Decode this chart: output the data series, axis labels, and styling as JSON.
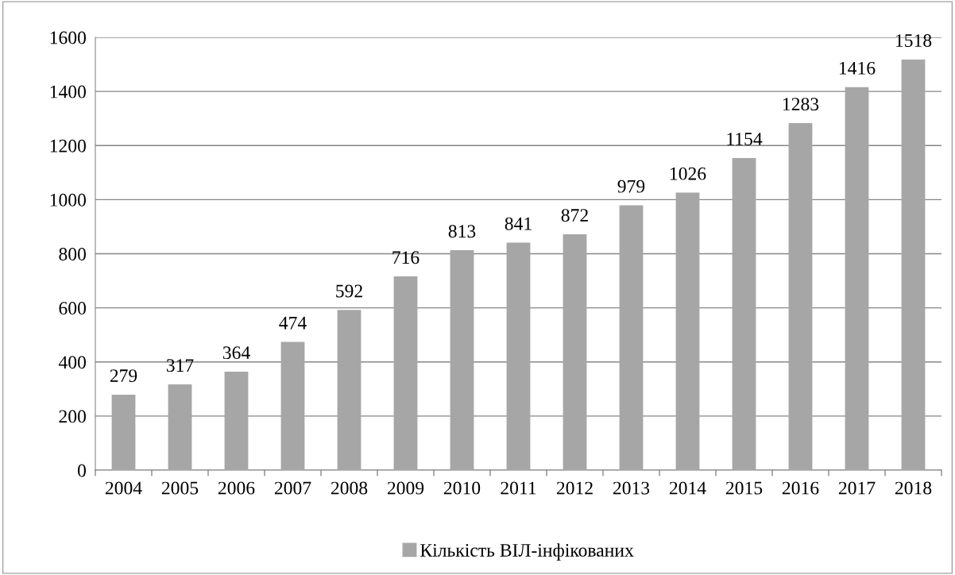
{
  "chart_data": {
    "type": "bar",
    "categories": [
      "2004",
      "2005",
      "2006",
      "2007",
      "2008",
      "2009",
      "2010",
      "2011",
      "2012",
      "2013",
      "2014",
      "2015",
      "2016",
      "2017",
      "2018"
    ],
    "series": [
      {
        "name": "Кількість ВІЛ-інфікованих",
        "color": "#a6a6a6",
        "values": [
          279,
          317,
          364,
          474,
          592,
          716,
          813,
          841,
          872,
          979,
          1026,
          1154,
          1283,
          1416,
          1518
        ]
      }
    ],
    "ylim": [
      0,
      1600
    ],
    "yticks": [
      0,
      200,
      400,
      600,
      800,
      1000,
      1200,
      1400,
      1600
    ],
    "grid": "y",
    "legend": "bottom",
    "data_labels": true
  }
}
